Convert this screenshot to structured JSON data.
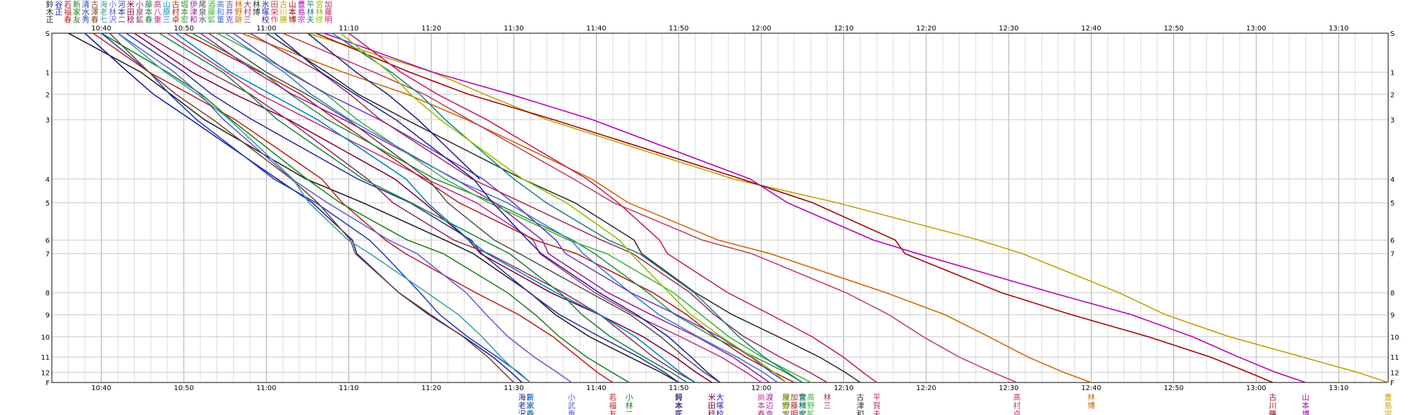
{
  "chart_data": {
    "type": "line",
    "title": "",
    "xlabel": "",
    "ylabel": "",
    "x_axis": {
      "unit": "time",
      "range": [
        "10:34",
        "13:16"
      ],
      "tick_labels": [
        "10:40",
        "10:50",
        "11:00",
        "11:10",
        "11:20",
        "11:30",
        "11:40",
        "11:50",
        "12:00",
        "12:10",
        "12:20",
        "12:30",
        "12:40",
        "12:50",
        "13:00",
        "13:10"
      ]
    },
    "y_axis": {
      "type": "cumulative distance (checkpoints)",
      "range": [
        "S",
        "F"
      ],
      "tick_labels": [
        "S",
        "1",
        "2",
        "3",
        "4",
        "5",
        "6",
        "7",
        "8",
        "9",
        "10",
        "11",
        "12",
        "F"
      ],
      "checkpoints": [
        0,
        1.15,
        1.8,
        2.55,
        4.3,
        5.0,
        6.1,
        6.5,
        7.65,
        8.3,
        8.95,
        9.55,
        10.0,
        10.3
      ]
    },
    "grid": true,
    "legend": "names above and below plot",
    "series": [
      {
        "color": "#202020",
        "start": "10:36",
        "finish": "11:50",
        "label_top": "鈴木正",
        "label_bottom": "鈴木正"
      },
      {
        "color": "#1a1aa0",
        "start": "10:38",
        "finish": "11:31",
        "label_top": "谷正",
        "label_bottom": "海老沢"
      },
      {
        "color": "#c02020",
        "start": "10:39",
        "finish": "11:42",
        "label_top": "若福春",
        "label_bottom": "若福友"
      },
      {
        "color": "#208020",
        "start": "10:40",
        "finish": "11:44",
        "label_top": "新家友",
        "label_bottom": "小林二"
      },
      {
        "color": "#2040c0",
        "start": "10:40",
        "finish": "11:32",
        "label_top": "清水秀",
        "label_bottom": "新家秀"
      },
      {
        "color": "#7a4a2a",
        "start": "10:41",
        "finish": "11:30",
        "label_top": "古澤春",
        "label_bottom": ""
      },
      {
        "color": "#40a0a0",
        "start": "10:42",
        "finish": "11:32",
        "label_top": "海老七",
        "label_bottom": "清水春"
      },
      {
        "color": "#6060d0",
        "start": "10:42",
        "finish": "11:37",
        "label_top": "小林沢",
        "label_bottom": "小武重"
      },
      {
        "color": "#3030a0",
        "start": "10:43",
        "finish": "11:50",
        "label_top": "河本二",
        "label_bottom": "河本鉱"
      },
      {
        "color": "#800040",
        "start": "10:44",
        "finish": "11:54",
        "label_top": "米田稔",
        "label_bottom": "米田稔"
      },
      {
        "color": "#903060",
        "start": "10:45",
        "finish": "11:52",
        "label_top": "小泉鉱",
        "label_bottom": ""
      },
      {
        "color": "#208040",
        "start": "10:47",
        "finish": "11:51",
        "label_top": "藤本春",
        "label_bottom": ""
      },
      {
        "color": "#c03080",
        "start": "10:48",
        "finish": "12:00",
        "label_top": "高八重",
        "label_bottom": "尚本春"
      },
      {
        "color": "#0080c0",
        "start": "10:49",
        "finish": "11:52",
        "label_top": "山原三",
        "label_bottom": ""
      },
      {
        "color": "#b02020",
        "start": "10:50",
        "finish": "12:04",
        "label_top": "古村卓",
        "label_bottom": "加藤明"
      },
      {
        "color": "#309040",
        "start": "10:51",
        "finish": "12:05",
        "label_top": "堀本宏",
        "label_bottom": "宮林彦"
      },
      {
        "color": "#a020a0",
        "start": "10:52",
        "finish": "12:01",
        "label_top": "伊津和",
        "label_bottom": "渡辺幸"
      },
      {
        "color": "#505050",
        "start": "10:53",
        "finish": "11:55",
        "label_top": "尾泉水",
        "label_bottom": ""
      },
      {
        "color": "#40b040",
        "start": "10:54",
        "finish": "12:06",
        "label_top": "酒藤鉱",
        "label_bottom": "高野鉱"
      },
      {
        "color": "#3a7ad0",
        "start": "10:55",
        "finish": "12:02",
        "label_top": "高和董",
        "label_bottom": ""
      },
      {
        "color": "#6a40c0",
        "start": "10:56",
        "finish": "12:03",
        "label_top": "吉井克",
        "label_bottom": "屋野水"
      },
      {
        "color": "#cc6600",
        "start": "10:57",
        "finish": "12:40",
        "label_top": "林野跡",
        "label_bottom": "林博"
      },
      {
        "color": "#a03060",
        "start": "10:58",
        "finish": "12:08",
        "label_top": "大村三",
        "label_bottom": "林三"
      },
      {
        "color": "#303030",
        "start": "11:00",
        "finish": "12:12",
        "label_top": "林博",
        "label_bottom": "古津和"
      },
      {
        "color": "#2020a0",
        "start": "11:01",
        "finish": "11:55",
        "label_top": "氷塚校",
        "label_bottom": "大塚校"
      },
      {
        "color": "#c04060",
        "start": "11:02",
        "finish": "12:31",
        "label_top": "田栄作",
        "label_bottom": "高村卓"
      },
      {
        "color": "#c0a000",
        "start": "11:05",
        "finish": "13:16",
        "label_top": "古川勝",
        "label_bottom": "豊島宗"
      },
      {
        "color": "#a00000",
        "start": "11:06",
        "finish": "13:02",
        "label_top": "山本博",
        "label_bottom": "古川勝"
      },
      {
        "color": "#b000b0",
        "start": "11:07",
        "finish": "13:06",
        "label_top": "豊島宗",
        "label_bottom": "山本博"
      },
      {
        "color": "#208080",
        "start": "11:08",
        "finish": "12:05",
        "label_top": "平林夫",
        "label_bottom": "豊和宏"
      },
      {
        "color": "#90c000",
        "start": "11:09",
        "finish": "12:03",
        "label_top": "宮林修",
        "label_bottom": "渡和宏"
      },
      {
        "color": "#c02060",
        "start": "11:10",
        "finish": "12:14",
        "label_top": "加藤明",
        "label_bottom": "平賀夫"
      },
      {
        "color": "#202080",
        "start": "11:05",
        "finish": "11:55",
        "label_top": "",
        "label_bottom": "",
        "dnf": true
      }
    ]
  }
}
